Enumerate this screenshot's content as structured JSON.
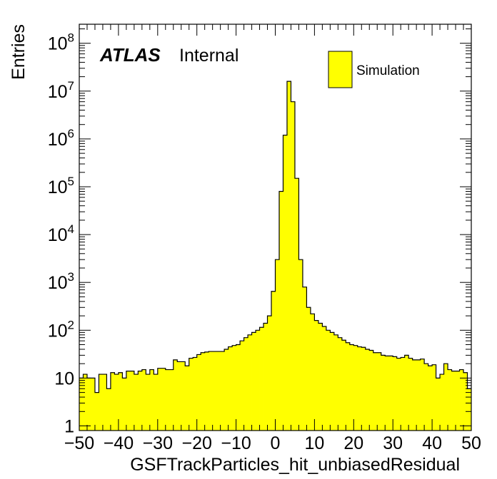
{
  "chart_data": {
    "type": "histogram",
    "title": "",
    "xlabel": "GSFTrackParticles_hit_unbiasedResidual",
    "ylabel": "Entries",
    "xlim": [
      -50,
      50
    ],
    "ylim": [
      0.8,
      250000000
    ],
    "yscale": "log",
    "bin_width": 1,
    "x_ticks": [
      -50,
      -40,
      -30,
      -20,
      -10,
      0,
      10,
      20,
      30,
      40,
      50
    ],
    "x_tick_labels": [
      "−50",
      "−40",
      "−30",
      "−20",
      "−10",
      "0",
      "10",
      "20",
      "30",
      "40",
      "50"
    ],
    "y_ticks": [
      {
        "value": 1,
        "base": "1",
        "exp": ""
      },
      {
        "value": 10,
        "base": "10",
        "exp": ""
      },
      {
        "value": 100,
        "base": "10",
        "exp": "2"
      },
      {
        "value": 1000,
        "base": "10",
        "exp": "3"
      },
      {
        "value": 10000,
        "base": "10",
        "exp": "4"
      },
      {
        "value": 100000,
        "base": "10",
        "exp": "5"
      },
      {
        "value": 1000000,
        "base": "10",
        "exp": "6"
      },
      {
        "value": 10000000,
        "base": "10",
        "exp": "7"
      },
      {
        "value": 100000000,
        "base": "10",
        "exp": "8"
      }
    ],
    "fill_color": "#ffff00",
    "line_color": "#000000",
    "series": [
      {
        "name": "Simulation",
        "bin_edges_start": -50,
        "values": [
          10,
          12,
          10,
          10,
          5,
          12,
          12,
          6,
          13,
          12,
          13,
          10,
          14,
          14,
          12,
          14,
          15,
          12,
          15,
          12,
          16,
          16,
          15,
          15,
          24,
          22,
          22,
          18,
          26,
          27,
          31,
          34,
          35,
          36,
          36,
          36,
          36,
          40,
          45,
          48,
          50,
          60,
          70,
          80,
          90,
          100,
          115,
          140,
          200,
          650,
          3000,
          80000,
          1200000,
          16000000,
          6000000,
          150000,
          3000,
          800,
          300,
          220,
          160,
          140,
          120,
          100,
          90,
          80,
          70,
          62,
          55,
          50,
          48,
          45,
          44,
          40,
          38,
          34,
          34,
          30,
          29,
          29,
          28,
          26,
          27,
          30,
          26,
          24,
          24,
          25,
          20,
          18,
          19,
          10,
          12,
          20,
          15,
          14,
          14,
          15,
          13,
          6
        ]
      }
    ],
    "legend": {
      "entries": [
        "Simulation"
      ],
      "position": "top-right"
    },
    "annotation": {
      "bold_italic": "ATLAS",
      "normal": "Internal"
    }
  }
}
